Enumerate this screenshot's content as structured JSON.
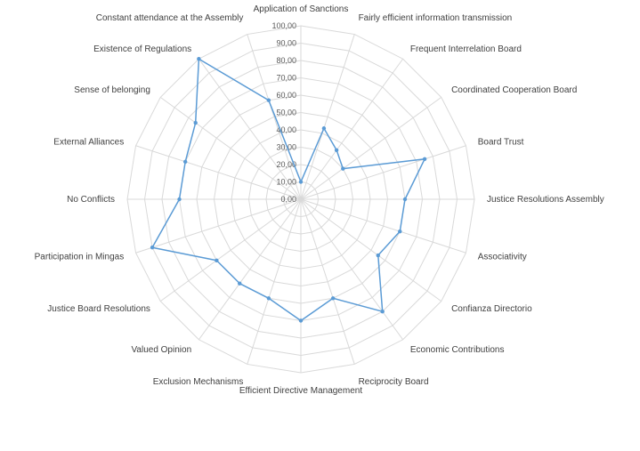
{
  "chart_data": {
    "type": "radar",
    "title": "",
    "categories": [
      "Application of Sanctions",
      "Fairly efficient information transmission",
      "Frequent Interrelation Board",
      "Coordinated Cooperation Board",
      "Board Trust",
      "Justice Resolutions Assembly",
      "Associativity",
      "Confianza Directorio",
      "Economic Contributions",
      "Reciprocity Board",
      "Efficient Directive Management",
      "Exclusion Mechanisms",
      "Valued Opinion",
      "Justice Board Resolutions",
      "Participation in Mingas",
      "No Conflicts",
      "External Alliances",
      "Sense of belonging",
      "Existence of Regulations",
      "Constant attendance at the Assembly"
    ],
    "series": [
      {
        "values": [
          10,
          43,
          35,
          30,
          75,
          60,
          60,
          55,
          80,
          60,
          70,
          60,
          60,
          60,
          90,
          70,
          70,
          75,
          100,
          60
        ]
      }
    ],
    "tick_labels": [
      "0,00",
      "10,00",
      "20,00",
      "30,00",
      "40,00",
      "50,00",
      "60,00",
      "70,00",
      "80,00",
      "90,00",
      "100,00"
    ],
    "rlim": [
      0,
      100
    ],
    "grid": true,
    "legend": "none",
    "colors": {
      "series": "#5b9bd5",
      "grid": "#d9d9d9"
    }
  }
}
